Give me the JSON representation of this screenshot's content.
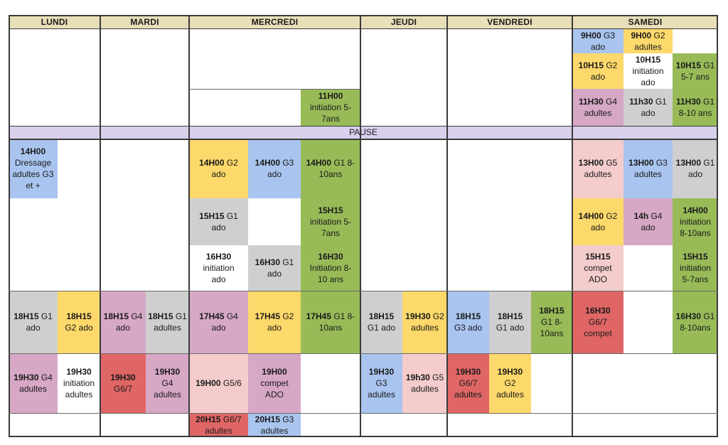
{
  "colors": {
    "blue": "#a9c4ef",
    "yellow": "#fdd86a",
    "green": "#98bb58",
    "gray": "#cfcfcf",
    "pink": "#d7a7c6",
    "salmon": "#f4cccc",
    "red": "#e06666",
    "lavender": "#d9d0ec",
    "header": "#e8dfb8",
    "white": "#ffffff"
  },
  "days": [
    "LUNDI",
    "MARDI",
    "MERCREDI",
    "JEUDI",
    "VENDREDI",
    "SAMEDI"
  ],
  "pause": "PAUSE",
  "slots": [
    {
      "day": "SAMEDI",
      "bold": "9H00",
      "rest": " G3\nado",
      "color": "blue"
    },
    {
      "day": "SAMEDI",
      "bold": "9H00",
      "rest": " G2\nadultes",
      "color": "yellow"
    },
    {
      "day": "SAMEDI",
      "bold": "10H15",
      "rest": " G2\nado",
      "color": "yellow"
    },
    {
      "day": "SAMEDI",
      "bold": "10H15",
      "rest": "\ninitiation\nado",
      "color": "white"
    },
    {
      "day": "SAMEDI",
      "bold": "10H15",
      "rest": " G1\n5-7 ans",
      "color": "green"
    },
    {
      "day": "MERCREDI",
      "bold": "11H00",
      "rest": "\ninitiation 5-\n7ans",
      "color": "green"
    },
    {
      "day": "SAMEDI",
      "bold": "11H30",
      "rest": " G4\nadultes",
      "color": "pink"
    },
    {
      "day": "SAMEDI",
      "bold": "11h30",
      "rest": " G1\nado",
      "color": "gray"
    },
    {
      "day": "SAMEDI",
      "bold": "11H30",
      "rest": " G1\n8-10 ans",
      "color": "green"
    },
    {
      "day": "LUNDI",
      "bold": "14H00",
      "rest": "\nDressage\nadultes G3\net +",
      "color": "blue"
    },
    {
      "day": "MERCREDI",
      "bold": "14H00",
      "rest": " G2\nado",
      "color": "yellow"
    },
    {
      "day": "MERCREDI",
      "bold": "14H00",
      "rest": " G3\nado",
      "color": "blue"
    },
    {
      "day": "MERCREDI",
      "bold": "14H00",
      "rest": "  G1 8-\n10ans",
      "color": "green"
    },
    {
      "day": "SAMEDI",
      "bold": "13H00",
      "rest": " G5\nadultes",
      "color": "salmon"
    },
    {
      "day": "SAMEDI",
      "bold": "13H00",
      "rest": " G3\nadultes",
      "color": "blue"
    },
    {
      "day": "SAMEDI",
      "bold": "13H00",
      "rest": " G1\nado",
      "color": "gray"
    },
    {
      "day": "MERCREDI",
      "bold": "15H15",
      "rest": " G1\nado",
      "color": "gray"
    },
    {
      "day": "MERCREDI",
      "bold": "15H15",
      "rest": "\ninitiation 5-\n7ans",
      "color": "green"
    },
    {
      "day": "SAMEDI",
      "bold": "14H00",
      "rest": " G2\nado",
      "color": "yellow"
    },
    {
      "day": "SAMEDI",
      "bold": "14h",
      "rest": " G4\nado",
      "color": "pink"
    },
    {
      "day": "SAMEDI",
      "bold": "14H00",
      "rest": "\ninitiation\n8-10ans",
      "color": "green"
    },
    {
      "day": "MERCREDI",
      "bold": "16H30",
      "rest": "\ninitiation\nado",
      "color": "white"
    },
    {
      "day": "MERCREDI",
      "bold": "16H30",
      "rest": " G1\nado",
      "color": "gray"
    },
    {
      "day": "MERCREDI",
      "bold": "16H30",
      "rest": "\nInitiation 8-\n10 ans",
      "color": "green"
    },
    {
      "day": "SAMEDI",
      "bold": "15H15",
      "rest": "\ncompet\nADO",
      "color": "salmon"
    },
    {
      "day": "SAMEDI",
      "bold": "15H15",
      "rest": "\ninitiation\n5-7ans",
      "color": "green"
    },
    {
      "day": "LUNDI",
      "bold": "18H15",
      "rest": " G1\nado",
      "color": "gray"
    },
    {
      "day": "LUNDI",
      "bold": "18H15",
      "rest": "\nG2 ado",
      "color": "yellow"
    },
    {
      "day": "MARDI",
      "bold": "18H15",
      "rest": " G4\nado",
      "color": "pink"
    },
    {
      "day": "MARDI",
      "bold": "18H15",
      "rest": " G1\nadultes",
      "color": "gray"
    },
    {
      "day": "MERCREDI",
      "bold": "17H45",
      "rest": " G4\nado",
      "color": "pink"
    },
    {
      "day": "MERCREDI",
      "bold": "17H45",
      "rest": " G2\nado",
      "color": "yellow"
    },
    {
      "day": "MERCREDI",
      "bold": "17H45",
      "rest": " G1 8-\n10ans",
      "color": "green"
    },
    {
      "day": "JEUDI",
      "bold": "18H15",
      "rest": "\nG1 ado",
      "color": "gray"
    },
    {
      "day": "JEUDI",
      "bold": "19H30",
      "rest": " G2\nadultes",
      "color": "yellow"
    },
    {
      "day": "VENDREDI",
      "bold": "18H15",
      "rest": "\nG3 ado",
      "color": "blue"
    },
    {
      "day": "VENDREDI",
      "bold": "18H15",
      "rest": "\nG1 ado",
      "color": "gray"
    },
    {
      "day": "VENDREDI",
      "bold": "18H15",
      "rest": "\nG1 8-\n10ans",
      "color": "green"
    },
    {
      "day": "SAMEDI",
      "bold": "16H30",
      "rest": "\nG6/7\ncompet",
      "color": "red"
    },
    {
      "day": "SAMEDI",
      "bold": "16H30",
      "rest": " G1\n8-10ans",
      "color": "green"
    },
    {
      "day": "LUNDI",
      "bold": "19H30",
      "rest": " G4\nadultes",
      "color": "pink"
    },
    {
      "day": "LUNDI",
      "bold": "19H30",
      "rest": "\ninitiation\nadultes",
      "color": "white"
    },
    {
      "day": "MARDI",
      "bold": "19H30",
      "rest": "\nG6/7",
      "color": "red"
    },
    {
      "day": "MARDI",
      "bold": "19H30",
      "rest": "\nG4\nadultes",
      "color": "pink"
    },
    {
      "day": "MERCREDI",
      "bold": "19H00",
      "rest": " G5/6",
      "color": "salmon"
    },
    {
      "day": "MERCREDI",
      "bold": "19H00",
      "rest": "\ncompet\nADO",
      "color": "pink"
    },
    {
      "day": "JEUDI",
      "bold": "19H30",
      "rest": "\nG3\nadultes",
      "color": "blue"
    },
    {
      "day": "JEUDI",
      "bold": "19h30",
      "rest": " G5\nadultes",
      "color": "salmon"
    },
    {
      "day": "VENDREDI",
      "bold": "19H30",
      "rest": "\nG6/7\nadultes",
      "color": "red"
    },
    {
      "day": "VENDREDI",
      "bold": "19H30",
      "rest": "\nG2\nadultes",
      "color": "yellow"
    },
    {
      "day": "MERCREDI",
      "bold": "20H15",
      "rest": " G6/7\nadultes",
      "color": "red"
    },
    {
      "day": "MERCREDI",
      "bold": "20H15",
      "rest": " G3\nadultes",
      "color": "blue"
    }
  ]
}
